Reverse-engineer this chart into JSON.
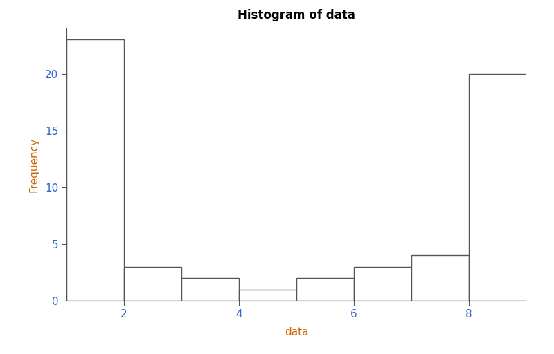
{
  "title": "Histogram of data",
  "xlabel": "data",
  "ylabel": "Frequency",
  "bin_edges": [
    1,
    2,
    3,
    4,
    5,
    6,
    7,
    8,
    9
  ],
  "frequencies": [
    23,
    3,
    2,
    1,
    2,
    3,
    4,
    20
  ],
  "bar_facecolor": "white",
  "bar_edgecolor": "#555555",
  "bar_linewidth": 1.0,
  "xticks": [
    2,
    4,
    6,
    8
  ],
  "yticks": [
    0,
    5,
    10,
    15,
    20
  ],
  "xlim": [
    1,
    9
  ],
  "ylim": [
    0,
    24
  ],
  "title_fontsize": 12,
  "label_fontsize": 11,
  "tick_fontsize": 11,
  "title_color": "#000000",
  "label_color": "#cc6600",
  "tick_color": "#3366cc",
  "spine_color": "#555555",
  "background_color": "white",
  "figsize": [
    8.0,
    5.12
  ],
  "dpi": 100
}
